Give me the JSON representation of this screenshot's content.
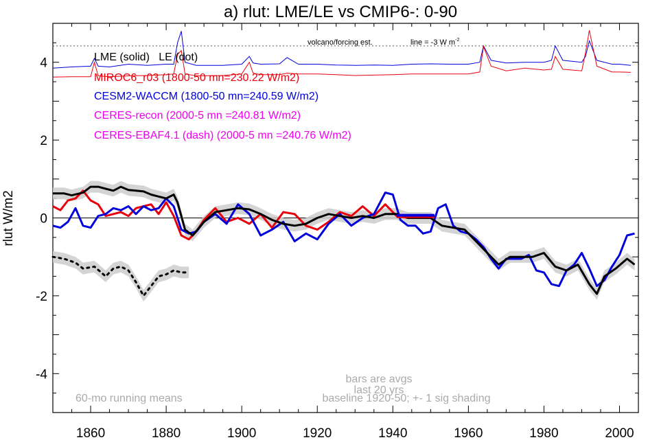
{
  "chart_data": {
    "type": "line",
    "title": "a) rlut: LME/LE vs CMIP6-: 0-90",
    "xlabel": "",
    "ylabel": "rlut W/m2",
    "xlim": [
      1850,
      2005
    ],
    "ylim": [
      -5,
      5
    ],
    "x_ticks": [
      1860,
      1880,
      1900,
      1920,
      1940,
      1960,
      1980,
      2000
    ],
    "y_ticks": [
      -4,
      -2,
      0,
      2,
      4
    ],
    "grid": false,
    "legend": {
      "placement": "top-left",
      "entries": [
        {
          "text": "LME (solid)   LE (dot)",
          "color": "#000000"
        },
        {
          "text": "MIROC6_r03 (1800-50 mn=230.22 W/m2)",
          "color": "#e8000b"
        },
        {
          "text": "CESM2-WACCM (1800-50 mn=240.59 W/m2)",
          "color": "#0000dd"
        },
        {
          "text": "CERES-recon (2000-5 mn =240.81 W/m2)",
          "color": "#ee00ee"
        },
        {
          "text": "CERES-EBAF4.1 (dash) (2000-5 mn =240.76 W/m2)",
          "color": "#ee00ee"
        }
      ]
    },
    "annotations": {
      "volcano_label": "volcano/forcing est.",
      "volcano_line_label": "line = -3 W m",
      "volcano_line_sup": "-2",
      "volcano_line_y": 4.42,
      "bars_note_1": "bars are avgs",
      "bars_note_2": "last 20 yrs",
      "baseline_note": "baseline 1920-50; +- 1 sig shading",
      "running_means_note": "60-mo running means"
    },
    "series": [
      {
        "name": "LME (solid)",
        "style": "solid",
        "color": "#000000",
        "x": [
          1850,
          1853,
          1855,
          1858,
          1860,
          1862,
          1864,
          1866,
          1868,
          1870,
          1872,
          1874,
          1876,
          1878,
          1880,
          1882,
          1883,
          1885,
          1887,
          1890,
          1893,
          1896,
          1899,
          1902,
          1905,
          1908,
          1911,
          1914,
          1917,
          1920,
          1923,
          1926,
          1929,
          1932,
          1935,
          1938,
          1941,
          1944,
          1947,
          1950,
          1953,
          1956,
          1959,
          1962,
          1965,
          1968,
          1971,
          1974,
          1977,
          1980,
          1983,
          1986,
          1989,
          1992,
          1994,
          1996,
          1999,
          2002,
          2004
        ],
        "y": [
          0.63,
          0.63,
          0.58,
          0.65,
          0.8,
          0.8,
          0.75,
          0.7,
          0.8,
          0.72,
          0.7,
          0.68,
          0.6,
          0.55,
          0.5,
          0.6,
          0.4,
          -0.3,
          -0.45,
          -0.1,
          0.15,
          0.2,
          0.25,
          0.22,
          0.1,
          -0.05,
          -0.15,
          -0.2,
          -0.15,
          0.0,
          0.1,
          0.05,
          0.0,
          0.05,
          0.0,
          0.1,
          0.1,
          0.0,
          0.0,
          0.0,
          -0.2,
          -0.25,
          -0.3,
          -0.6,
          -0.9,
          -1.2,
          -1.0,
          -1.0,
          -1.0,
          -0.9,
          -1.25,
          -1.35,
          -1.2,
          -1.7,
          -1.95,
          -1.5,
          -1.3,
          -1.05,
          -1.2
        ],
        "shade": 0.15
      },
      {
        "name": "LE (dot)",
        "style": "dot",
        "color": "#000000",
        "x": [
          1850,
          1853,
          1856,
          1858,
          1861,
          1864,
          1866,
          1868,
          1870,
          1872,
          1874,
          1876,
          1878,
          1880,
          1882,
          1884,
          1886
        ],
        "y": [
          -1.0,
          -1.05,
          -1.15,
          -1.3,
          -1.25,
          -1.5,
          -1.3,
          -1.25,
          -1.35,
          -1.65,
          -2.0,
          -1.75,
          -1.5,
          -1.45,
          -1.35,
          -1.4,
          -1.4
        ],
        "shade": 0.15
      },
      {
        "name": "MIROC6_r03",
        "style": "solid",
        "color": "#e8000b",
        "x": [
          1850,
          1852,
          1854,
          1856,
          1858,
          1860,
          1862,
          1864,
          1866,
          1868,
          1870,
          1872,
          1874,
          1876,
          1878,
          1880,
          1882,
          1884,
          1886,
          1888,
          1890,
          1893,
          1896,
          1899,
          1902,
          1905,
          1908,
          1911,
          1914,
          1917,
          1920,
          1923,
          1926,
          1929,
          1932,
          1935,
          1938,
          1941,
          1944,
          1947,
          1950
        ],
        "y": [
          0.3,
          0.2,
          0.45,
          0.5,
          0.7,
          0.45,
          0.35,
          0.05,
          0.1,
          0.15,
          0.05,
          0.25,
          0.3,
          0.35,
          0.1,
          0.4,
          0.05,
          -0.45,
          -0.55,
          -0.35,
          -0.05,
          0.25,
          -0.1,
          0.0,
          -0.15,
          0.1,
          -0.25,
          0.15,
          0.1,
          -0.2,
          -0.3,
          -0.1,
          0.15,
          0.05,
          0.3,
          0.05,
          0.35,
          0.05,
          0.0,
          0.05,
          0.05
        ]
      },
      {
        "name": "CESM2-WACCM",
        "style": "solid",
        "color": "#0000dd",
        "x": [
          1850,
          1852,
          1854,
          1856,
          1858,
          1860,
          1862,
          1864,
          1866,
          1868,
          1870,
          1872,
          1874,
          1876,
          1878,
          1880,
          1882,
          1884,
          1886,
          1888,
          1890,
          1893,
          1896,
          1899,
          1902,
          1905,
          1908,
          1911,
          1914,
          1917,
          1920,
          1923,
          1926,
          1929,
          1932,
          1935,
          1938,
          1940,
          1942,
          1944,
          1946,
          1948,
          1950,
          1952,
          1954,
          1956,
          1958,
          1960,
          1962,
          1964,
          1966,
          1968,
          1970,
          1972,
          1974,
          1976,
          1978,
          1980,
          1982,
          1984,
          1986,
          1988,
          1990,
          1992,
          1994,
          1996,
          1998,
          2000,
          2002,
          2004
        ],
        "y": [
          -0.2,
          -0.25,
          -0.1,
          0.25,
          -0.2,
          -0.25,
          0.05,
          0.1,
          0.25,
          0.2,
          0.3,
          0.1,
          0.3,
          0.2,
          0.25,
          0.5,
          0.3,
          -0.3,
          -0.4,
          -0.35,
          -0.1,
          0.1,
          -0.15,
          0.35,
          0.1,
          -0.45,
          -0.3,
          -0.1,
          -0.6,
          -0.4,
          -0.55,
          -0.15,
          0.1,
          -0.2,
          0.0,
          0.1,
          0.65,
          0.6,
          -0.05,
          -0.2,
          -0.2,
          -0.4,
          -0.35,
          0.25,
          0.35,
          -0.2,
          -0.35,
          -0.4,
          -0.55,
          -0.75,
          -1.05,
          -1.3,
          -1.05,
          -1.05,
          -1.05,
          -0.95,
          -1.35,
          -1.4,
          -1.7,
          -1.75,
          -1.35,
          -1.2,
          -0.9,
          -1.3,
          -1.75,
          -1.6,
          -1.25,
          -0.95,
          -0.45,
          -0.4
        ]
      }
    ],
    "bars": [
      {
        "name": "MIROC6_r03 last-20-yr avg",
        "x0": 1931,
        "x1": 1951,
        "y": 0.05,
        "color": "#e8000b"
      },
      {
        "name": "CESM2-WACCM last-20-yr avg",
        "x0": 1931,
        "x1": 1951,
        "y": 0.05,
        "color": "#0000dd"
      }
    ],
    "forcing_series": [
      {
        "name": "volcano/forcing est. (blue)",
        "color": "#0000dd",
        "x": [
          1850,
          1855,
          1860,
          1861,
          1862,
          1865,
          1870,
          1875,
          1880,
          1882,
          1883,
          1884,
          1885,
          1888,
          1895,
          1900,
          1902,
          1903,
          1905,
          1910,
          1912,
          1915,
          1920,
          1925,
          1930,
          1935,
          1940,
          1945,
          1950,
          1955,
          1960,
          1963,
          1964,
          1966,
          1970,
          1975,
          1980,
          1982,
          1983,
          1985,
          1990,
          1991,
          1992,
          1994,
          1998,
          2000,
          2003
        ],
        "y": [
          3.85,
          3.88,
          3.9,
          4.1,
          3.9,
          3.88,
          3.95,
          3.92,
          3.95,
          3.95,
          4.5,
          4.8,
          4.0,
          3.92,
          3.92,
          3.95,
          4.15,
          3.98,
          3.95,
          3.96,
          4.12,
          3.95,
          3.95,
          3.93,
          3.92,
          3.93,
          3.92,
          3.95,
          3.96,
          3.95,
          3.95,
          4.0,
          4.42,
          4.05,
          3.98,
          4.0,
          4.0,
          4.05,
          4.42,
          4.05,
          4.0,
          4.15,
          4.55,
          4.05,
          3.95,
          3.95,
          3.92
        ]
      },
      {
        "name": "volcano/forcing est. (red)",
        "color": "#e8000b",
        "x": [
          1850,
          1855,
          1860,
          1861,
          1862,
          1865,
          1870,
          1875,
          1880,
          1882,
          1883,
          1884,
          1885,
          1888,
          1895,
          1900,
          1902,
          1903,
          1905,
          1910,
          1912,
          1915,
          1920,
          1925,
          1930,
          1935,
          1940,
          1945,
          1950,
          1955,
          1960,
          1963,
          1964,
          1966,
          1970,
          1975,
          1980,
          1982,
          1983,
          1985,
          1990,
          1991,
          1992,
          1994,
          1998,
          2000,
          2003
        ],
        "y": [
          3.62,
          3.63,
          3.63,
          4.0,
          3.65,
          3.63,
          3.65,
          3.66,
          3.68,
          3.7,
          4.2,
          4.3,
          3.7,
          3.65,
          3.66,
          3.7,
          4.0,
          3.72,
          3.68,
          3.68,
          3.72,
          3.7,
          3.7,
          3.68,
          3.66,
          3.67,
          3.68,
          3.7,
          3.7,
          3.7,
          3.7,
          3.75,
          4.4,
          3.9,
          3.78,
          3.85,
          3.8,
          3.82,
          4.15,
          3.82,
          3.78,
          4.25,
          4.82,
          3.9,
          3.75,
          3.75,
          3.74
        ]
      }
    ]
  }
}
